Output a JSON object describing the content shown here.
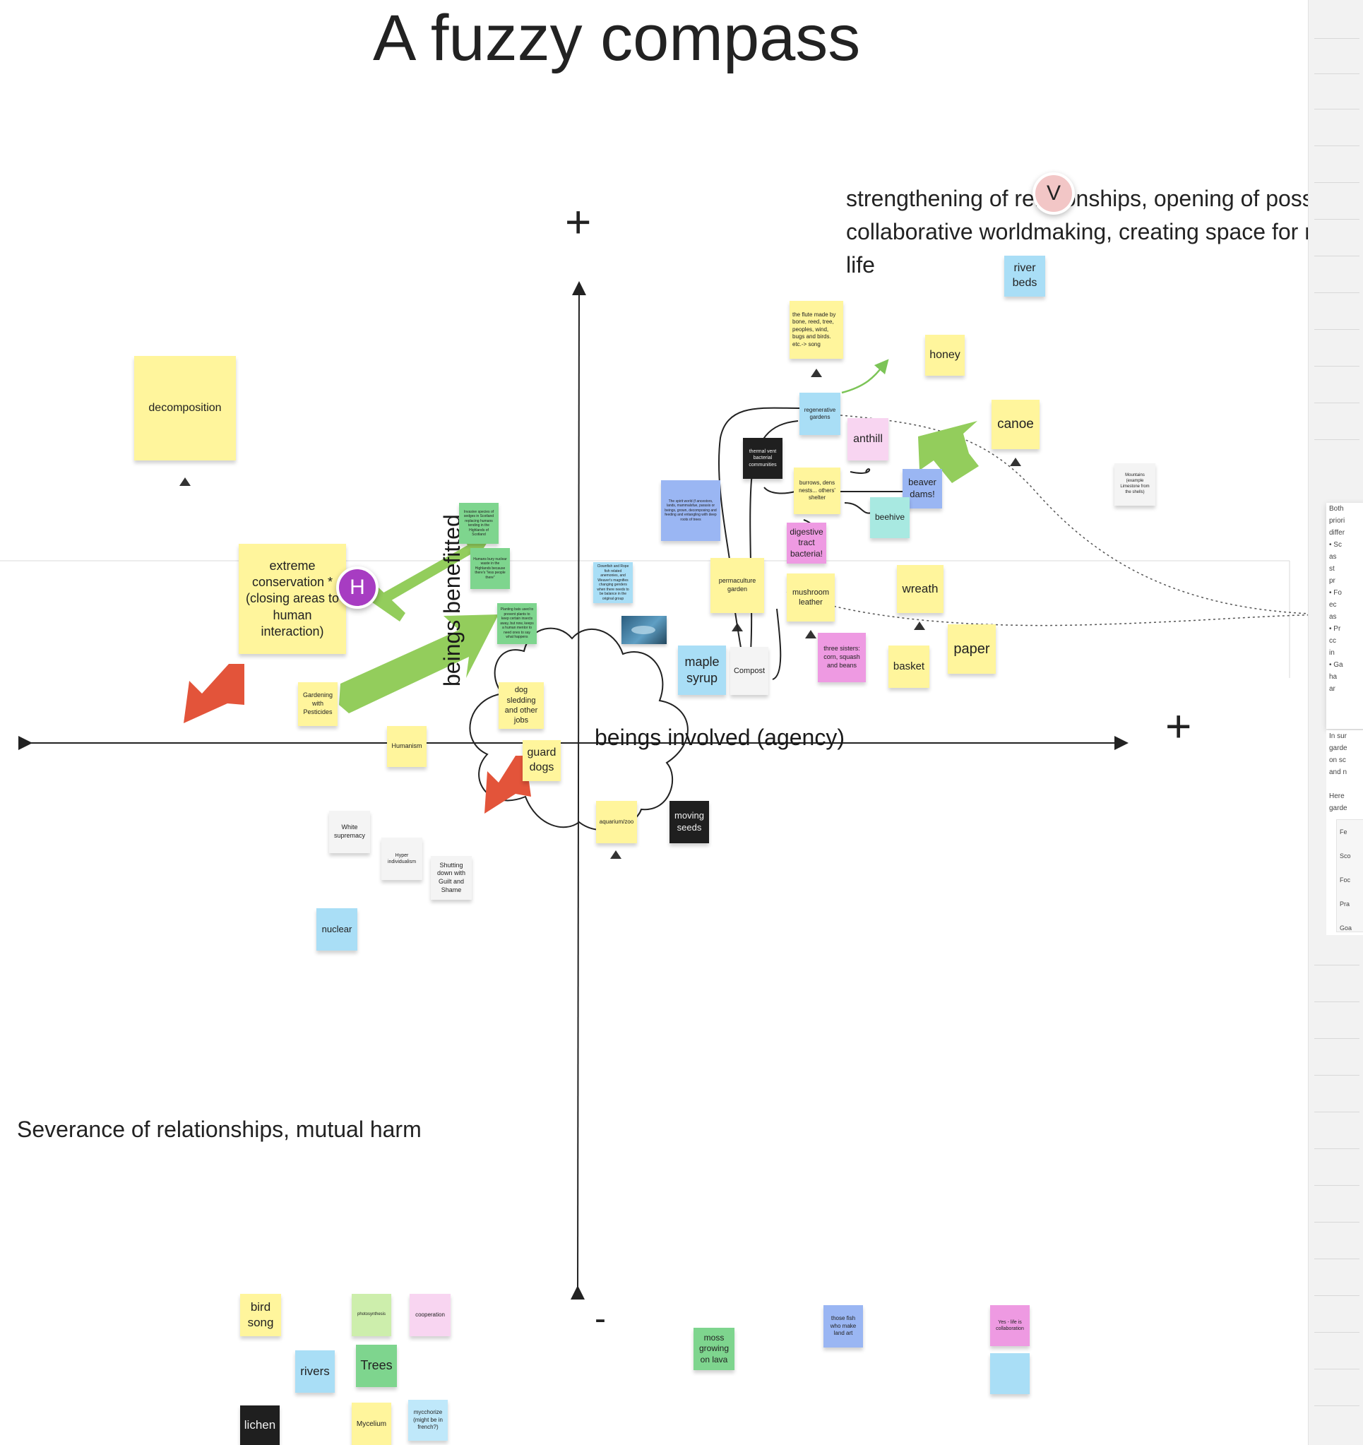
{
  "board": {
    "title": "A fuzzy compass",
    "quadrant_top_right": [
      "strengthening of relationships, opening of possi",
      "collaborative worldmaking, creating space for m",
      "life"
    ],
    "quadrant_bottom_left": "Severance of relationships, mutual harm",
    "y_axis_label": "beings benefitted",
    "x_axis_label": "beings involved (agency)",
    "plus_top": "+",
    "plus_right": "+",
    "minus_bottom": "-"
  },
  "avatars": {
    "h": "H",
    "v": "V"
  },
  "colors": {
    "yellow": "#fff59c",
    "blue": "#a9def6",
    "green": "#7ed58e",
    "pink": "#ee9ae2",
    "light_pink": "#f8d5f1",
    "black": "#1f1f1f",
    "white": "#f4f4f4",
    "violet": "#9ab6f3",
    "teal": "#a8e9e1",
    "arrow_green": "#93cd5c",
    "arrow_red": "#e3543a",
    "avatar_h": "#a73cc2",
    "avatar_v": "#f2c6c6"
  },
  "notes": {
    "river_beds": "river beds",
    "flute": "the flute made by bone, reed, tree, peoples, wind, bugs and birds. etc.-> song",
    "honey": "honey",
    "decomposition": "decomposition",
    "regenerative_gardens": "regenerative gardens",
    "anthill": "anthill",
    "canoe": "canoe",
    "thermal_vent": "thermal vent bacterial communities",
    "spirit_world": "The spirit world (f ancestors, lands, mammalsfue, parasis or beings, grown, decomposing and feeding and entangling with deep roots of trees",
    "burrows": "burrows, dens nests... others' shelter",
    "beaver_dams": "beaver dams!",
    "mountains": "Mountains (example Limestone from the shells)",
    "invasive_species": "Invasive species of sedges in Scotland replacing humans tending in the Highlands of Scotland",
    "humans_bury": "Humans bury nuclear waste in the Highlands because there's \"less people there\"",
    "beehive": "beehive",
    "digestive": "digestive tract bacteria!",
    "extreme_conservation": "extreme conservation * (closing areas to human interaction)",
    "clownfish": "Clownfish and Rope fish related anemonies, and Weaver's magnifies changing genders when there needs to be balance in the original group",
    "planting_bats": "Planting bats used to prevent plants to keep certain insects away, but now, keeps a human mentor to need ones to say what happens",
    "permaculture": "permaculture garden",
    "mushroom_leather": "mushroom leather",
    "wreath": "wreath",
    "maple_syrup": "maple syrup",
    "compost": "Compost",
    "three_sisters": "three sisters: corn, squash and beans",
    "basket": "basket",
    "paper": "paper",
    "gardening_pesticides": "Gardening with Pesticides",
    "dog_sledding": "dog sledding and other jobs",
    "humanism": "Humanism",
    "guard_dogs": "guard dogs",
    "aquarium_zoo": "aquarium/zoo",
    "moving_seeds": "moving seeds",
    "white_supremacy": "White supremacy",
    "hyper_individualism": "Hyper individualism",
    "shutting_down": "Shutting down with Guilt and Shame",
    "nuclear": "nuclear",
    "bird_song": "bird song",
    "photosynthesis": "photosynthesis",
    "cooperation": "cooperation",
    "rivers": "rivers",
    "trees": "Trees",
    "lichen": "lichen",
    "mycelium": "Mycelium",
    "mycchorize": "mycchorize (might be in french?)",
    "moss_lava": "moss growing on lava",
    "fish_land_art": "those fish who make land art",
    "yes_life": "Yes - life is collaboration",
    "empty_blue": ""
  },
  "side_doc": {
    "lines": [
      "Both",
      "priori",
      "differ",
      "• Sc",
      "as",
      "st",
      "pr",
      "• Fo",
      "ec",
      "as",
      "• Pr",
      "cc",
      "in",
      "• Ga",
      "ha",
      "ar"
    ],
    "lines2": [
      "In sur",
      "garde",
      "on sc",
      "and n",
      "",
      "Here",
      "garde"
    ],
    "table_rows": [
      "Fe",
      "Sco",
      "Foc",
      "Pra",
      "Goa"
    ]
  }
}
